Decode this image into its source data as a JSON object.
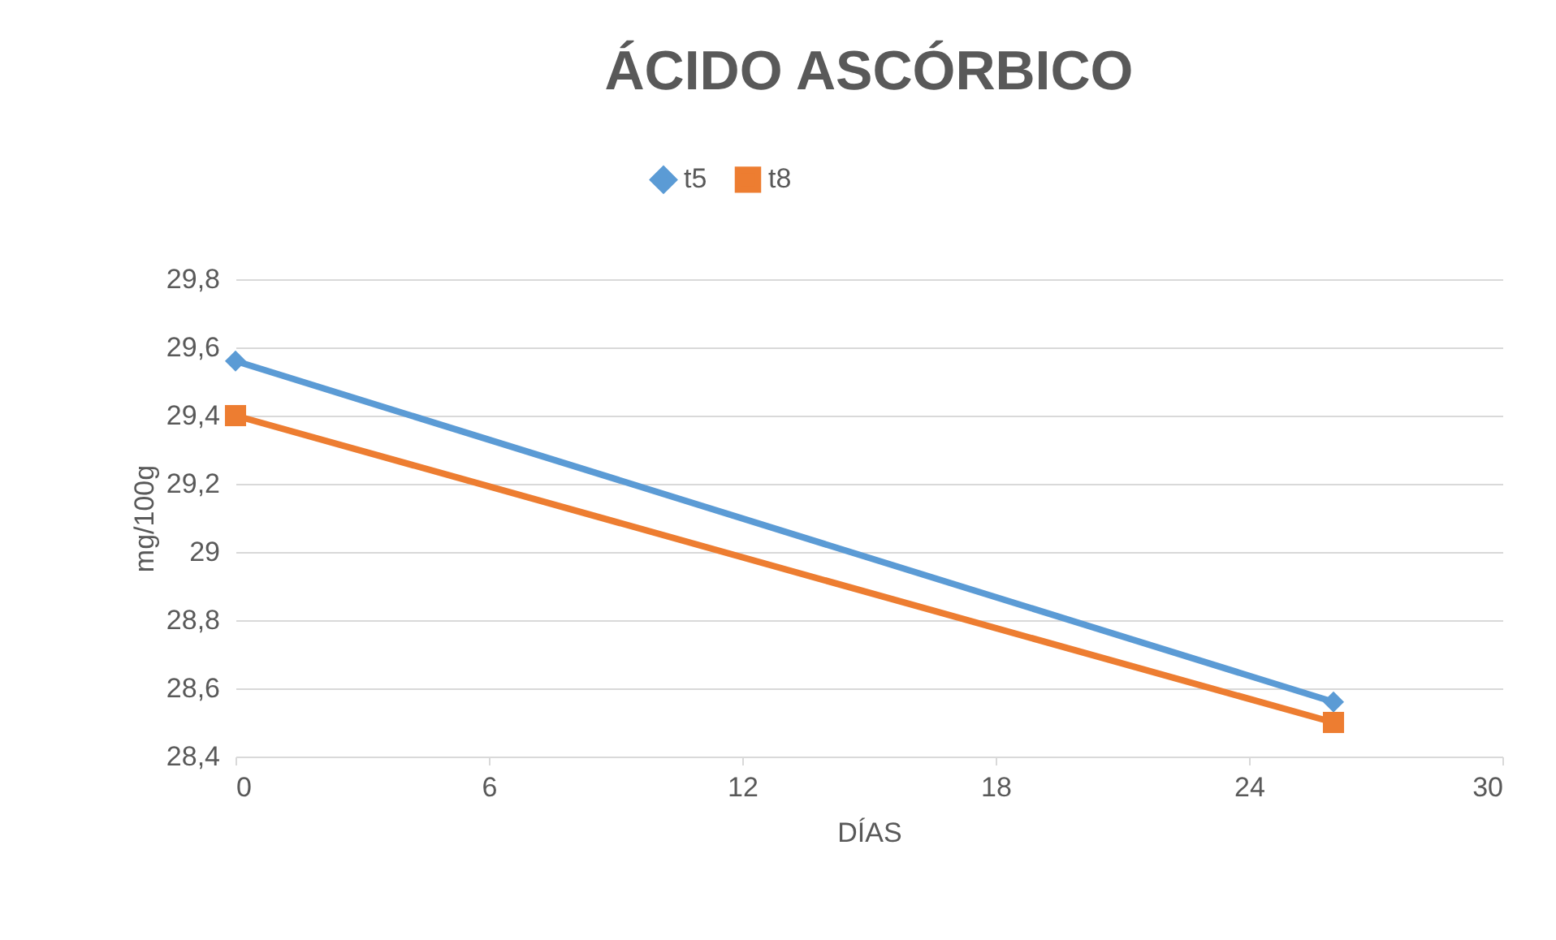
{
  "chart_data": {
    "type": "line",
    "title": "ÁCIDO ASCÓRBICO",
    "xlabel": "DÍAS",
    "ylabel": "mg/100g",
    "x": [
      0,
      26
    ],
    "series": [
      {
        "name": "t5",
        "color": "#5b9bd5",
        "values": [
          29.56,
          28.56
        ],
        "marker": "diamond"
      },
      {
        "name": "t8",
        "color": "#ed7d31",
        "values": [
          29.4,
          28.5
        ],
        "marker": "square"
      }
    ],
    "xlim": [
      0,
      30
    ],
    "xticks": [
      0,
      6,
      12,
      18,
      24,
      30
    ],
    "ylim": [
      28.4,
      29.8
    ],
    "yticks": [
      {
        "value": 28.4,
        "label": "28,4"
      },
      {
        "value": 28.6,
        "label": "28,6"
      },
      {
        "value": 28.8,
        "label": "28,8"
      },
      {
        "value": 29,
        "label": "29"
      },
      {
        "value": 29.2,
        "label": "29,2"
      },
      {
        "value": 29.4,
        "label": "29,4"
      },
      {
        "value": 29.6,
        "label": "29,6"
      },
      {
        "value": 29.8,
        "label": "29,8"
      }
    ],
    "grid": "y",
    "legend": "top",
    "line_style": "solid"
  }
}
